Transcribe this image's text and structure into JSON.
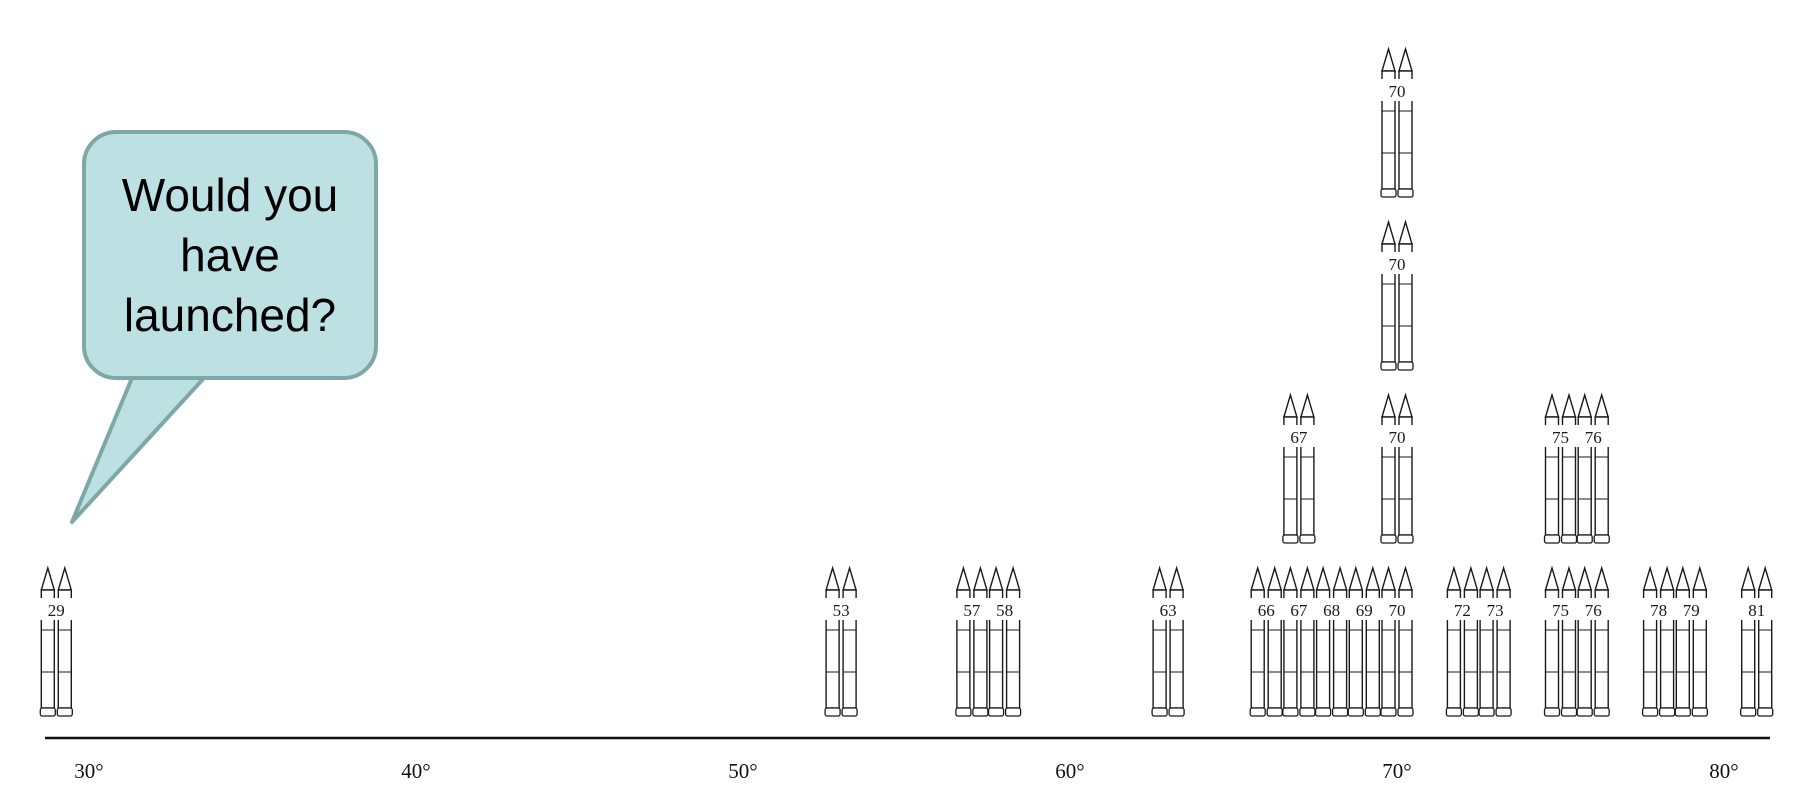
{
  "callout": {
    "text": "Would you have launched?"
  },
  "colors": {
    "bubble_fill": "#bde0e2",
    "bubble_border": "#7fa7a8",
    "ink": "#1a1a1a"
  },
  "chart_data": {
    "type": "scatter",
    "subtype": "stacked-pictogram",
    "icon": "space-shuttle-booster-pair",
    "x_unit": "°F",
    "xlim": [
      29,
      81.5
    ],
    "x_ticks": [
      "30°",
      "40°",
      "50°",
      "60°",
      "70°",
      "80°"
    ],
    "x_tick_values": [
      30,
      40,
      50,
      60,
      70,
      80
    ],
    "points": [
      {
        "x": 29,
        "label": "29",
        "count": 1
      },
      {
        "x": 53,
        "label": "53",
        "count": 1
      },
      {
        "x": 57,
        "label": "57",
        "count": 1
      },
      {
        "x": 58,
        "label": "58",
        "count": 1
      },
      {
        "x": 63,
        "label": "63",
        "count": 1
      },
      {
        "x": 66,
        "label": "66",
        "count": 1
      },
      {
        "x": 67,
        "label": "67",
        "count": 2
      },
      {
        "x": 68,
        "label": "68",
        "count": 1
      },
      {
        "x": 69,
        "label": "69",
        "count": 1
      },
      {
        "x": 70,
        "label": "70",
        "count": 4
      },
      {
        "x": 72,
        "label": "72",
        "count": 1
      },
      {
        "x": 73,
        "label": "73",
        "count": 1
      },
      {
        "x": 75,
        "label": "75",
        "count": 2
      },
      {
        "x": 76,
        "label": "76",
        "count": 2
      },
      {
        "x": 78,
        "label": "78",
        "count": 1
      },
      {
        "x": 79,
        "label": "79",
        "count": 1
      },
      {
        "x": 81,
        "label": "81",
        "count": 1
      }
    ]
  }
}
